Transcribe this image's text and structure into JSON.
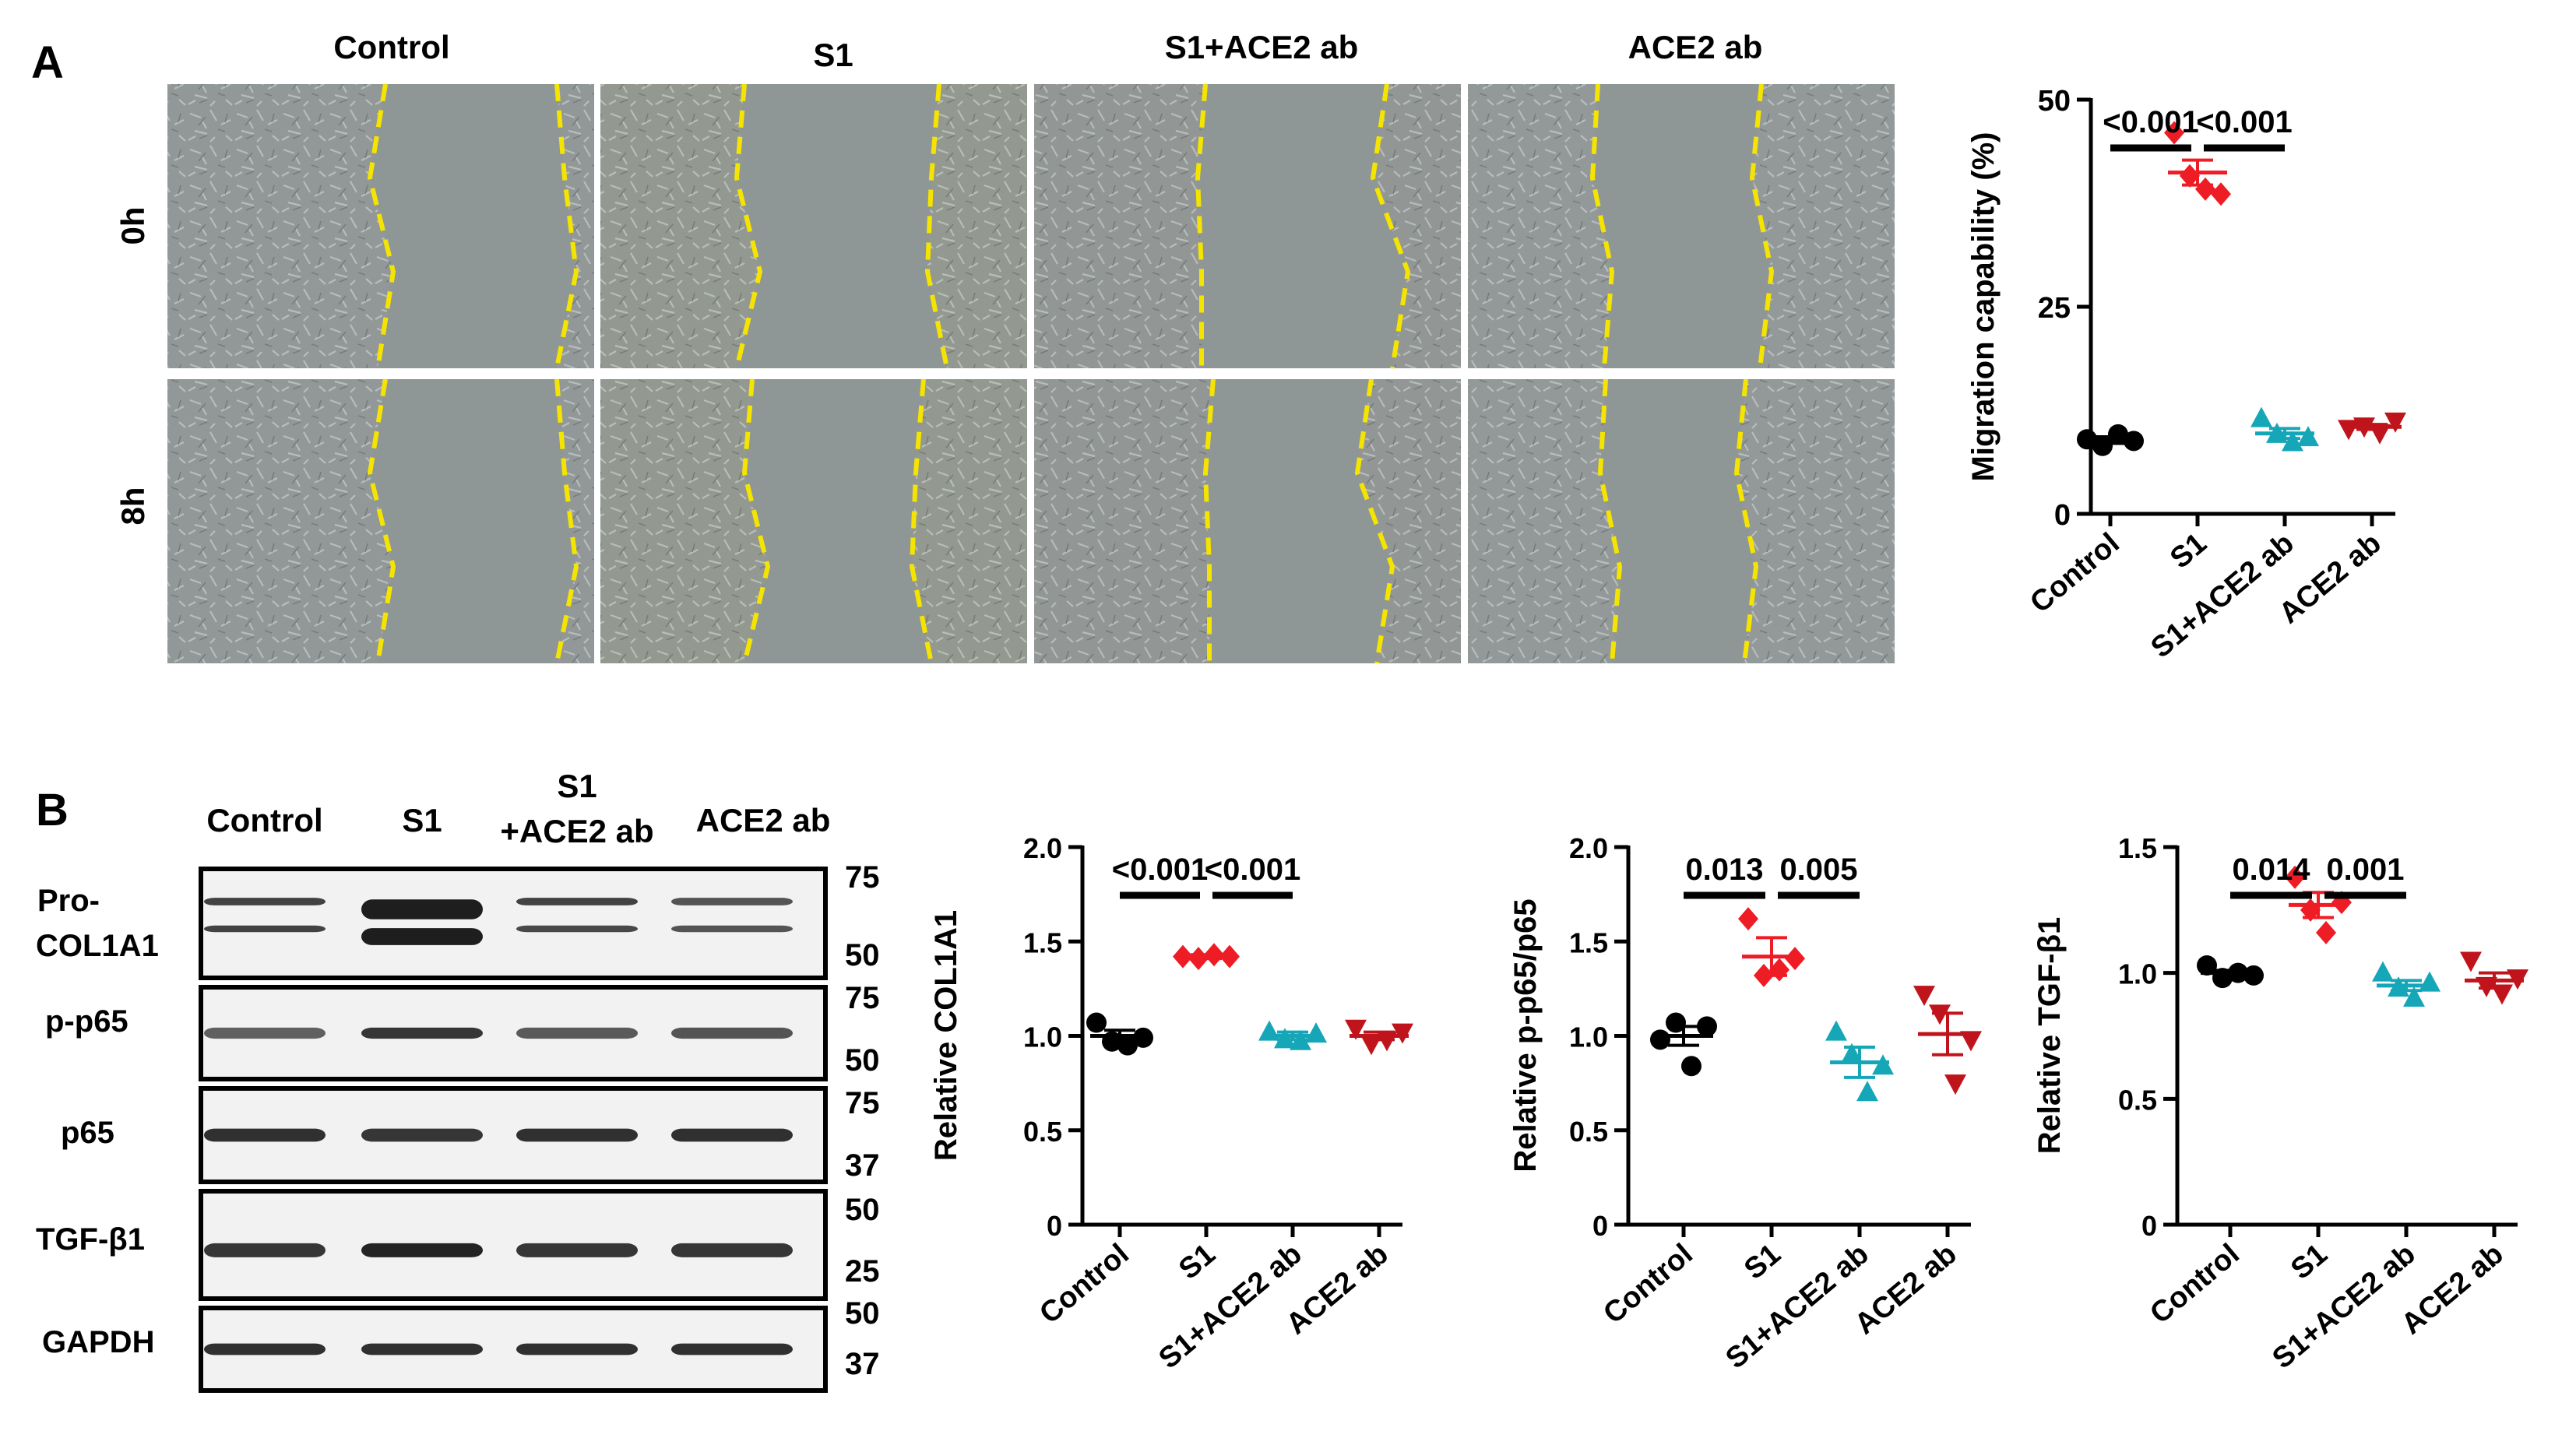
{
  "panel_a": {
    "letter": "A",
    "col_labels": [
      "Control",
      "S1",
      "S1+ACE2 ab",
      "ACE2 ab"
    ],
    "row_labels": [
      "0h",
      "8h"
    ]
  },
  "panel_b": {
    "letter": "B",
    "blot_col_labels": [
      "Control",
      "S1",
      "S1",
      "+ACE2 ab",
      "ACE2 ab"
    ],
    "blot_rows": [
      {
        "label_lines": [
          "Pro-",
          "COL1A1"
        ],
        "markers": [
          "75",
          "50"
        ]
      },
      {
        "label_lines": [
          "p-p65"
        ],
        "markers": [
          "75",
          "50"
        ]
      },
      {
        "label_lines": [
          "p65"
        ],
        "markers": [
          "75",
          "37"
        ]
      },
      {
        "label_lines": [
          "TGF-β1"
        ],
        "markers": [
          "50",
          "25"
        ]
      },
      {
        "label_lines": [
          "GAPDH"
        ],
        "markers": [
          "50",
          "37"
        ]
      }
    ]
  },
  "chart_data": [
    {
      "type": "scatter",
      "ylabel": "Migration capability (%)",
      "categories": [
        "Control",
        "S1",
        "S1+ACE2 ab",
        "ACE2 ab"
      ],
      "ylim": [
        0,
        50
      ],
      "yticks": [
        "0",
        "25",
        "50"
      ],
      "series": [
        {
          "values": [
            9.0,
            8.2,
            9.6,
            8.8
          ],
          "mean": 8.9,
          "sem": 0.4,
          "color": "#000000",
          "marker": "circle"
        },
        {
          "values": [
            46.0,
            40.8,
            39.2,
            38.6
          ],
          "mean": 41.2,
          "sem": 1.5,
          "color": "#ee1c25",
          "marker": "diamond"
        },
        {
          "values": [
            11.5,
            9.6,
            8.6,
            9.2
          ],
          "mean": 9.7,
          "sem": 0.6,
          "color": "#15a7b8",
          "marker": "triangle-up"
        },
        {
          "values": [
            10.3,
            10.6,
            9.8,
            11.2
          ],
          "mean": 10.5,
          "sem": 0.3,
          "color": "#c0141c",
          "marker": "triangle-down"
        }
      ],
      "significance": [
        {
          "from": 0,
          "to": 1,
          "label": "<0.001"
        },
        {
          "from": 1,
          "to": 2,
          "label": "<0.001"
        }
      ]
    },
    {
      "type": "scatter",
      "ylabel": "Relative COL1A1",
      "categories": [
        "Control",
        "S1",
        "S1+ACE2 ab",
        "ACE2 ab"
      ],
      "ylim": [
        0,
        2.0
      ],
      "yticks": [
        "0",
        "0.5",
        "1.0",
        "1.5",
        "2.0"
      ],
      "series": [
        {
          "values": [
            1.07,
            0.97,
            0.95,
            0.99
          ],
          "mean": 1.0,
          "sem": 0.03,
          "color": "#000000",
          "marker": "circle"
        },
        {
          "values": [
            1.42,
            1.41,
            1.43,
            1.42
          ],
          "mean": 1.42,
          "sem": 0.01,
          "color": "#ee1c25",
          "marker": "diamond"
        },
        {
          "values": [
            1.02,
            0.98,
            0.97,
            1.01
          ],
          "mean": 1.0,
          "sem": 0.02,
          "color": "#15a7b8",
          "marker": "triangle-up"
        },
        {
          "values": [
            1.04,
            0.96,
            0.98,
            1.02
          ],
          "mean": 1.0,
          "sem": 0.02,
          "color": "#c0141c",
          "marker": "triangle-down"
        }
      ],
      "significance": [
        {
          "from": 0,
          "to": 1,
          "label": "<0.001"
        },
        {
          "from": 1,
          "to": 2,
          "label": "<0.001"
        }
      ]
    },
    {
      "type": "scatter",
      "ylabel": "Relative p-p65/p65",
      "categories": [
        "Control",
        "S1",
        "S1+ACE2 ab",
        "ACE2 ab"
      ],
      "ylim": [
        0,
        2.0
      ],
      "yticks": [
        "0",
        "0.5",
        "1.0",
        "1.5",
        "2.0"
      ],
      "series": [
        {
          "values": [
            0.98,
            1.07,
            0.84,
            1.05
          ],
          "mean": 1.0,
          "sem": 0.05,
          "color": "#000000",
          "marker": "circle"
        },
        {
          "values": [
            1.62,
            1.32,
            1.35,
            1.41
          ],
          "mean": 1.42,
          "sem": 0.1,
          "color": "#ee1c25",
          "marker": "diamond"
        },
        {
          "values": [
            1.02,
            0.9,
            0.7,
            0.84
          ],
          "mean": 0.86,
          "sem": 0.08,
          "color": "#15a7b8",
          "marker": "triangle-up"
        },
        {
          "values": [
            1.22,
            1.12,
            0.75,
            0.98
          ],
          "mean": 1.01,
          "sem": 0.11,
          "color": "#c0141c",
          "marker": "triangle-down"
        }
      ],
      "significance": [
        {
          "from": 0,
          "to": 1,
          "label": "0.013"
        },
        {
          "from": 1,
          "to": 2,
          "label": "0.005"
        }
      ]
    },
    {
      "type": "scatter",
      "ylabel": "Relative TGF-β1",
      "categories": [
        "Control",
        "S1",
        "S1+ACE2 ab",
        "ACE2 ab"
      ],
      "ylim": [
        0,
        1.5
      ],
      "yticks": [
        "0",
        "0.5",
        "1.0",
        "1.5"
      ],
      "series": [
        {
          "values": [
            1.03,
            0.98,
            1.0,
            0.99
          ],
          "mean": 1.0,
          "sem": 0.01,
          "color": "#000000",
          "marker": "circle"
        },
        {
          "values": [
            1.38,
            1.25,
            1.16,
            1.28
          ],
          "mean": 1.27,
          "sem": 0.05,
          "color": "#ee1c25",
          "marker": "diamond"
        },
        {
          "values": [
            1.0,
            0.94,
            0.9,
            0.96
          ],
          "mean": 0.95,
          "sem": 0.02,
          "color": "#15a7b8",
          "marker": "triangle-up"
        },
        {
          "values": [
            1.05,
            0.95,
            0.92,
            0.98
          ],
          "mean": 0.97,
          "sem": 0.03,
          "color": "#c0141c",
          "marker": "triangle-down"
        }
      ],
      "significance": [
        {
          "from": 0,
          "to": 1,
          "label": "0.014"
        },
        {
          "from": 1,
          "to": 2,
          "label": "0.001"
        }
      ]
    }
  ]
}
